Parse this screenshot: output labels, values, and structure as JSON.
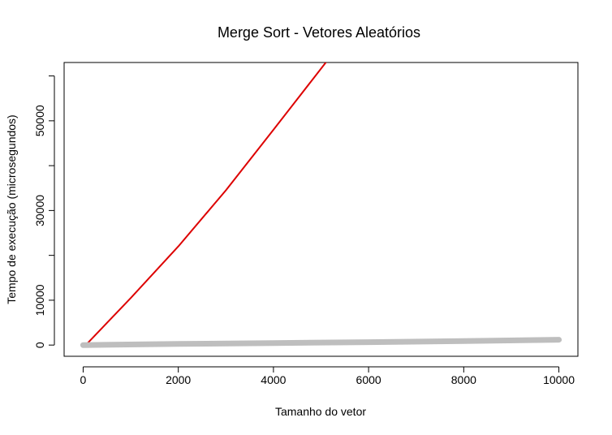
{
  "chart_data": {
    "type": "line",
    "title": "Merge Sort - Vetores Aleatórios",
    "xlabel": "Tamanho do vetor",
    "ylabel": "Tempo de execução (microsegundos)",
    "xlim": [
      -400,
      10400
    ],
    "ylim": [
      -2500,
      63000
    ],
    "x_ticks": [
      0,
      2000,
      4000,
      6000,
      8000,
      10000
    ],
    "x_tick_labels": [
      "0",
      "2000",
      "4000",
      "6000",
      "8000",
      "10000"
    ],
    "y_ticks": [
      0,
      10000,
      30000,
      50000
    ],
    "y_tick_labels": [
      "0",
      "10000",
      "30000",
      "50000"
    ],
    "y_minor_ticks": [
      20000,
      40000,
      60000
    ],
    "grid": false,
    "series": [
      {
        "color": "#dd0000",
        "x": [
          100,
          1000,
          2000,
          3000,
          4000,
          5100
        ],
        "y": [
          500,
          10500,
          22000,
          34500,
          48000,
          63000
        ]
      },
      {
        "color": "#bebebe",
        "x": [
          0,
          2000,
          4000,
          6000,
          8000,
          10000
        ],
        "y": [
          0,
          250,
          450,
          650,
          900,
          1200
        ]
      }
    ]
  }
}
